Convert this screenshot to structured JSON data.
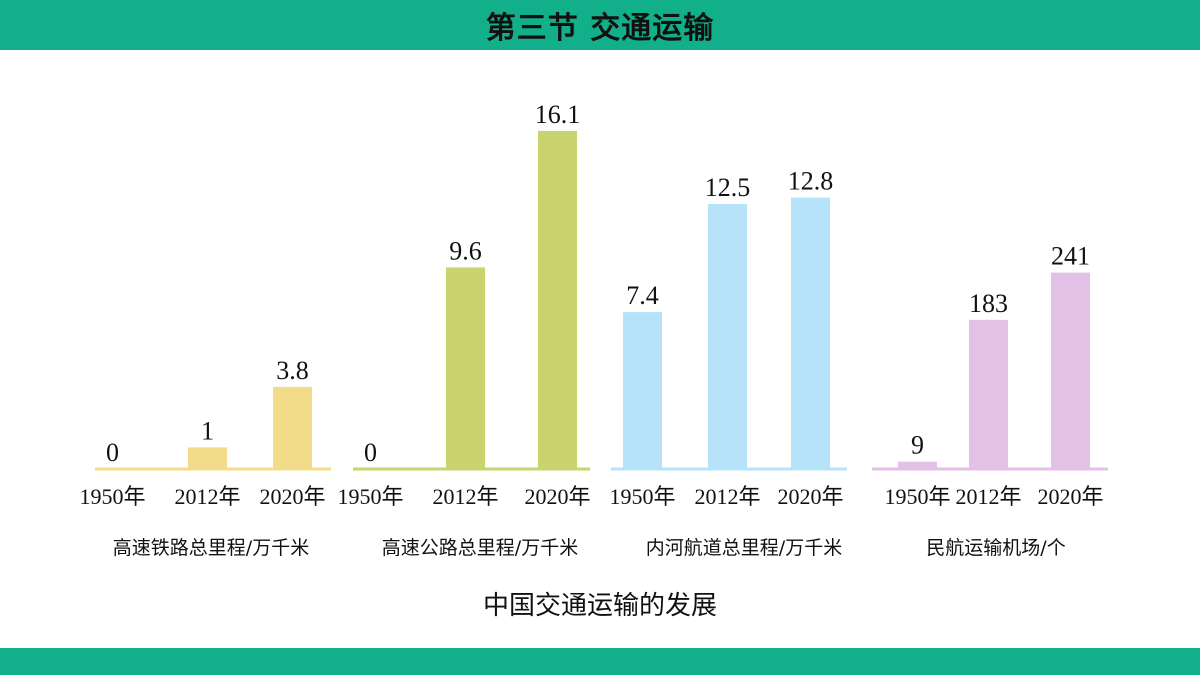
{
  "header": {
    "title": "第三节 交通运输"
  },
  "chart_data": {
    "type": "bar",
    "caption": "中国交通运输的发展",
    "groups": [
      {
        "label": "高速铁路总里程/万千米",
        "color": "#f3dc89",
        "categories": [
          "1950年",
          "2012年",
          "2020年"
        ],
        "values": [
          0,
          1,
          3.8
        ],
        "value_labels": [
          "0",
          "1",
          "3.8"
        ]
      },
      {
        "label": "高速公路总里程/万千米",
        "color": "#cad46e",
        "categories": [
          "1950年",
          "2012年",
          "2020年"
        ],
        "values": [
          0,
          9.6,
          16.1
        ],
        "value_labels": [
          "0",
          "9.6",
          "16.1"
        ]
      },
      {
        "label": "内河航道总里程/万千米",
        "color": "#b6e3fa",
        "categories": [
          "1950年",
          "2012年",
          "2020年"
        ],
        "values": [
          7.4,
          12.5,
          12.8
        ],
        "value_labels": [
          "7.4",
          "12.5",
          "12.8"
        ]
      },
      {
        "label": "民航运输机场/个",
        "color": "#e3c0e6",
        "categories": [
          "1950年",
          "2012年",
          "2020年"
        ],
        "values": [
          9,
          183,
          241
        ],
        "value_labels": [
          "9",
          "183",
          "241"
        ]
      }
    ]
  }
}
